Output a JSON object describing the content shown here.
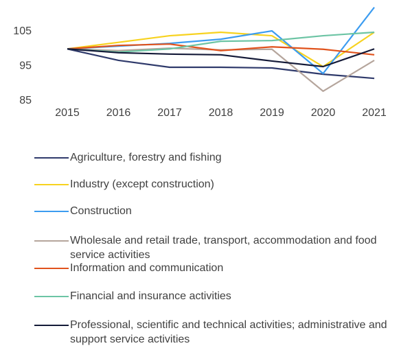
{
  "chart_data": {
    "type": "line",
    "categories": [
      "2015",
      "2016",
      "2017",
      "2018",
      "2019",
      "2020",
      "2021"
    ],
    "ylim": [
      85,
      113
    ],
    "yticks": [
      85,
      95,
      105
    ],
    "grid": false,
    "series": [
      {
        "name": "Agriculture, forestry and fishing",
        "color": "#2f3a6b",
        "values": [
          100,
          96.7,
          94.7,
          94.7,
          94.5,
          92.7,
          91.5
        ]
      },
      {
        "name": "Industry (except construction)",
        "color": "#f7d21f",
        "values": [
          100,
          101.9,
          103.8,
          104.8,
          103.8,
          94.9,
          104.8
        ]
      },
      {
        "name": "Construction",
        "color": "#3c9cf0",
        "values": [
          100,
          100.8,
          101.6,
          102.8,
          105.2,
          92.9,
          112
        ]
      },
      {
        "name": "Wholesale and retail trade, transport, accommodation and food service activities",
        "color": "#b5a59c",
        "values": [
          100,
          99.5,
          100.2,
          99.7,
          99.9,
          87.8,
          96.7
        ]
      },
      {
        "name": "Information and communication",
        "color": "#e0521c",
        "values": [
          100,
          101,
          101.4,
          99.5,
          100.6,
          99.9,
          98.3
        ]
      },
      {
        "name": "Financial and insurance activities",
        "color": "#6cc4a4",
        "values": [
          100,
          99.1,
          100,
          102.2,
          102.4,
          103.8,
          104.8
        ]
      },
      {
        "name": "Professional, scientific and technical activities; administrative and support service activities",
        "color": "#141a38",
        "values": [
          100,
          98.9,
          98.5,
          98.3,
          96.5,
          94.9,
          100
        ]
      }
    ]
  }
}
